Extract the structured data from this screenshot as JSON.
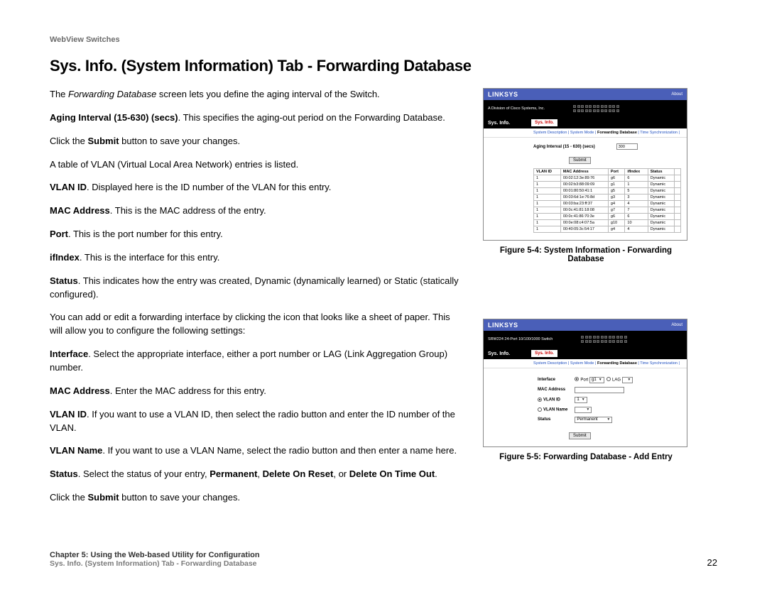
{
  "header_tag": "WebView Switches",
  "heading": "Sys. Info. (System Information) Tab - Forwarding Database",
  "paragraphs": {
    "p1_pre": "The ",
    "p1_em": "Forwarding Database",
    "p1_post": " screen lets you define the aging interval of the Switch.",
    "p2_b": "Aging Interval (15-630) (secs)",
    "p2_post": ". This specifies the aging-out period on the Forwarding Database.",
    "p3_pre": "Click the ",
    "p3_b": "Submit",
    "p3_post": " button to save your changes.",
    "p4": "A table of VLAN (Virtual Local Area Network) entries is listed.",
    "p5_b": "VLAN ID",
    "p5_post": ". Displayed here is the ID number of the VLAN for this entry.",
    "p6_b": "MAC Address",
    "p6_post": ". This is the MAC address of the entry.",
    "p7_b": "Port",
    "p7_post": ". This is the port number for this entry.",
    "p8_b": "ifIndex",
    "p8_post": ". This is the interface for this entry.",
    "p9_b": "Status",
    "p9_post": ". This indicates how the entry was created, Dynamic (dynamically learned) or Static (statically configured).",
    "p10": "You can add or edit a forwarding interface by clicking the icon that looks like a sheet of paper. This will allow you to configure the following settings:",
    "p11_b": "Interface",
    "p11_post": ". Select the appropriate interface, either a port number or LAG (Link Aggregation Group) number.",
    "p12_b": "MAC Address",
    "p12_post": ". Enter the MAC address for this entry.",
    "p13_b": "VLAN ID",
    "p13_post": ". If you want to use a VLAN ID, then select the radio button and enter the ID number of the VLAN.",
    "p14_b": "VLAN Name",
    "p14_post": ". If you want to use a VLAN Name, select the radio button and then enter a name here.",
    "p15_b": "Status",
    "p15_post_1": ". Select the status of your entry, ",
    "p15_b2": "Permanent",
    "p15_sep1": ", ",
    "p15_b3": "Delete On Reset",
    "p15_sep2": ", or ",
    "p15_b4": "Delete On Time Out",
    "p15_end": ".",
    "p16_pre": "Click the ",
    "p16_b": "Submit",
    "p16_post": " button to save your changes."
  },
  "figure4": {
    "caption": "Figure 5-4: System Information - Forwarding Database",
    "brand": "LINKSYS",
    "brand_sub": "A Division of Cisco Systems, Inc.",
    "section": "Sys. Info.",
    "tab": "Sys. Info.",
    "nav": "System Description  | System Mode  | Forwarding Database  | Time Synchronization  |",
    "nav_active": "Forwarding Database",
    "aging_label": "Aging Interval (15 - 630) (secs)",
    "aging_value": "300",
    "submit": "Submit",
    "table": {
      "columns": [
        "VLAN ID",
        "MAC Address",
        "Port",
        "ifIndex",
        "Status",
        ""
      ],
      "rows": [
        [
          "1",
          "00:02:12:3e:89:76",
          "g6",
          "6",
          "Dynamic",
          ""
        ],
        [
          "1",
          "00:02:b3:88:09:09",
          "g1",
          "1",
          "Dynamic",
          ""
        ],
        [
          "1",
          "00:01:80:50:41:1",
          "g5",
          "5",
          "Dynamic",
          ""
        ],
        [
          "1",
          "00:03:6d:1e:76:8d",
          "g3",
          "3",
          "Dynamic",
          ""
        ],
        [
          "1",
          "00:03:ba:23:ff:37",
          "g4",
          "4",
          "Dynamic",
          ""
        ],
        [
          "1",
          "00:0c:41:81:18:08",
          "g7",
          "7",
          "Dynamic",
          ""
        ],
        [
          "1",
          "00:0c:41:86:70:3e",
          "g6",
          "6",
          "Dynamic",
          ""
        ],
        [
          "1",
          "00:0e:08:c4:07:5a",
          "g10",
          "10",
          "Dynamic",
          ""
        ],
        [
          "1",
          "00:40:05:3c:54:17",
          "g4",
          "4",
          "Dynamic",
          ""
        ]
      ]
    }
  },
  "figure5": {
    "caption": "Figure 5-5: Forwarding Database - Add Entry",
    "brand": "LINKSYS",
    "section": "Sys. Info.",
    "tab": "Sys. Info.",
    "nav": "System Description  | System Mode  | Forwarding Database  | Time Synchronization  |",
    "submit": "Submit",
    "form": {
      "interface_label": "Interface",
      "interface_port": "Port",
      "interface_port_val": "g1",
      "interface_lag": "LAG",
      "mac_label": "MAC Address",
      "vlanid_label": "VLAN ID",
      "vlanid_val": "1",
      "vlanname_label": "VLAN Name",
      "status_label": "Status",
      "status_val": "Permanent"
    }
  },
  "footer": {
    "chapter": "Chapter 5: Using the Web-based Utility for Configuration",
    "subtitle": "Sys. Info. (System Information) Tab - Forwarding Database",
    "page": "22"
  },
  "colors": {
    "header_blue": "#4a5fb8",
    "text_gray": "#6b6b6b",
    "link_blue": "#2050c0"
  }
}
